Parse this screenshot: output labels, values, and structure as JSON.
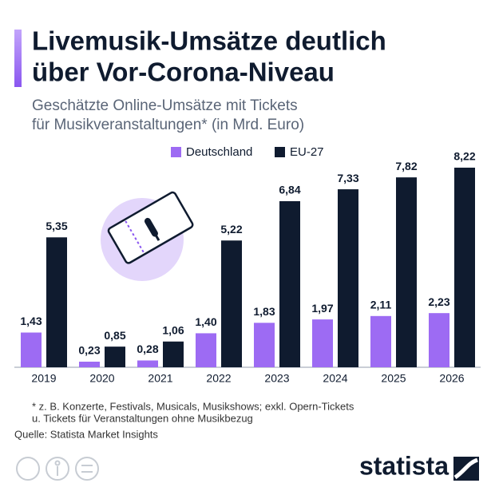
{
  "chart_data": {
    "type": "bar",
    "title": [
      "Livemusik-Umsätze deutlich",
      "über Vor-Corona-Niveau"
    ],
    "subtitle": [
      "Geschätzte Online-Umsätze mit Tickets",
      "für Musikveranstaltungen* (in Mrd. Euro)"
    ],
    "categories": [
      "2019",
      "2020",
      "2021",
      "2022",
      "2023",
      "2024",
      "2025",
      "2026"
    ],
    "series": [
      {
        "name": "Deutschland",
        "color": "#9d6bf3",
        "values": [
          1.43,
          0.23,
          0.28,
          1.4,
          1.83,
          1.97,
          2.11,
          2.23
        ],
        "value_labels": [
          "1,43",
          "0,23",
          "0,28",
          "1,40",
          "1,83",
          "1,97",
          "2,11",
          "2,23"
        ]
      },
      {
        "name": "EU-27",
        "color": "#0f1b2f",
        "values": [
          5.35,
          0.85,
          1.06,
          5.22,
          6.84,
          7.33,
          7.82,
          8.22
        ],
        "value_labels": [
          "5,35",
          "0,85",
          "1,06",
          "5,22",
          "6,84",
          "7,33",
          "7,82",
          "8,22"
        ]
      }
    ],
    "notes": [
      "* z. B. Konzerte, Festivals, Musicals, Musikshows; exkl. Opern-Tickets",
      "u. Tickets für Veranstaltungen ohne Musikbezug"
    ],
    "source": "Quelle: Statista Market Insights",
    "logo": "statista"
  }
}
